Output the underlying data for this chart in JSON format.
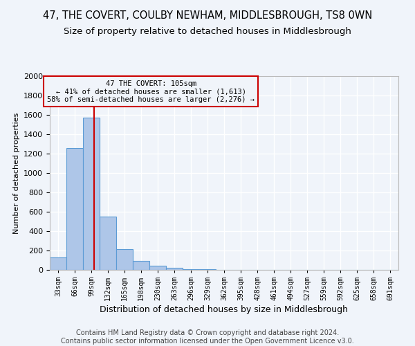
{
  "title": "47, THE COVERT, COULBY NEWHAM, MIDDLESBROUGH, TS8 0WN",
  "subtitle": "Size of property relative to detached houses in Middlesbrough",
  "xlabel": "Distribution of detached houses by size in Middlesbrough",
  "ylabel": "Number of detached properties",
  "footer_line1": "Contains HM Land Registry data © Crown copyright and database right 2024.",
  "footer_line2": "Contains public sector information licensed under the Open Government Licence v3.0.",
  "annotation_line1": "47 THE COVERT: 105sqm",
  "annotation_line2": "← 41% of detached houses are smaller (1,613)",
  "annotation_line3": "58% of semi-detached houses are larger (2,276) →",
  "bar_color": "#aec6e8",
  "bar_edge_color": "#5b9bd5",
  "vline_color": "#cc0000",
  "vline_x": 105,
  "categories": [
    "33sqm",
    "66sqm",
    "99sqm",
    "132sqm",
    "165sqm",
    "198sqm",
    "230sqm",
    "263sqm",
    "296sqm",
    "329sqm",
    "362sqm",
    "395sqm",
    "428sqm",
    "461sqm",
    "494sqm",
    "527sqm",
    "559sqm",
    "592sqm",
    "625sqm",
    "658sqm",
    "691sqm"
  ],
  "bin_edges": [
    16.5,
    49.5,
    82.5,
    115.5,
    148.5,
    181.5,
    214.5,
    247.0,
    280.0,
    313.0,
    346.0,
    379.0,
    412.0,
    445.0,
    478.0,
    511.0,
    544.0,
    576.5,
    609.5,
    642.5,
    675.5,
    708.5
  ],
  "values": [
    130,
    1260,
    1570,
    550,
    215,
    90,
    45,
    20,
    5,
    5,
    0,
    0,
    0,
    0,
    0,
    0,
    0,
    0,
    0,
    0,
    0
  ],
  "ylim": [
    0,
    2000
  ],
  "yticks": [
    0,
    200,
    400,
    600,
    800,
    1000,
    1200,
    1400,
    1600,
    1800,
    2000
  ],
  "background_color": "#f0f4fa",
  "grid_color": "#ffffff",
  "title_fontsize": 10.5,
  "subtitle_fontsize": 9.5,
  "footer_fontsize": 7.0,
  "ylabel_fontsize": 8,
  "xlabel_fontsize": 9
}
